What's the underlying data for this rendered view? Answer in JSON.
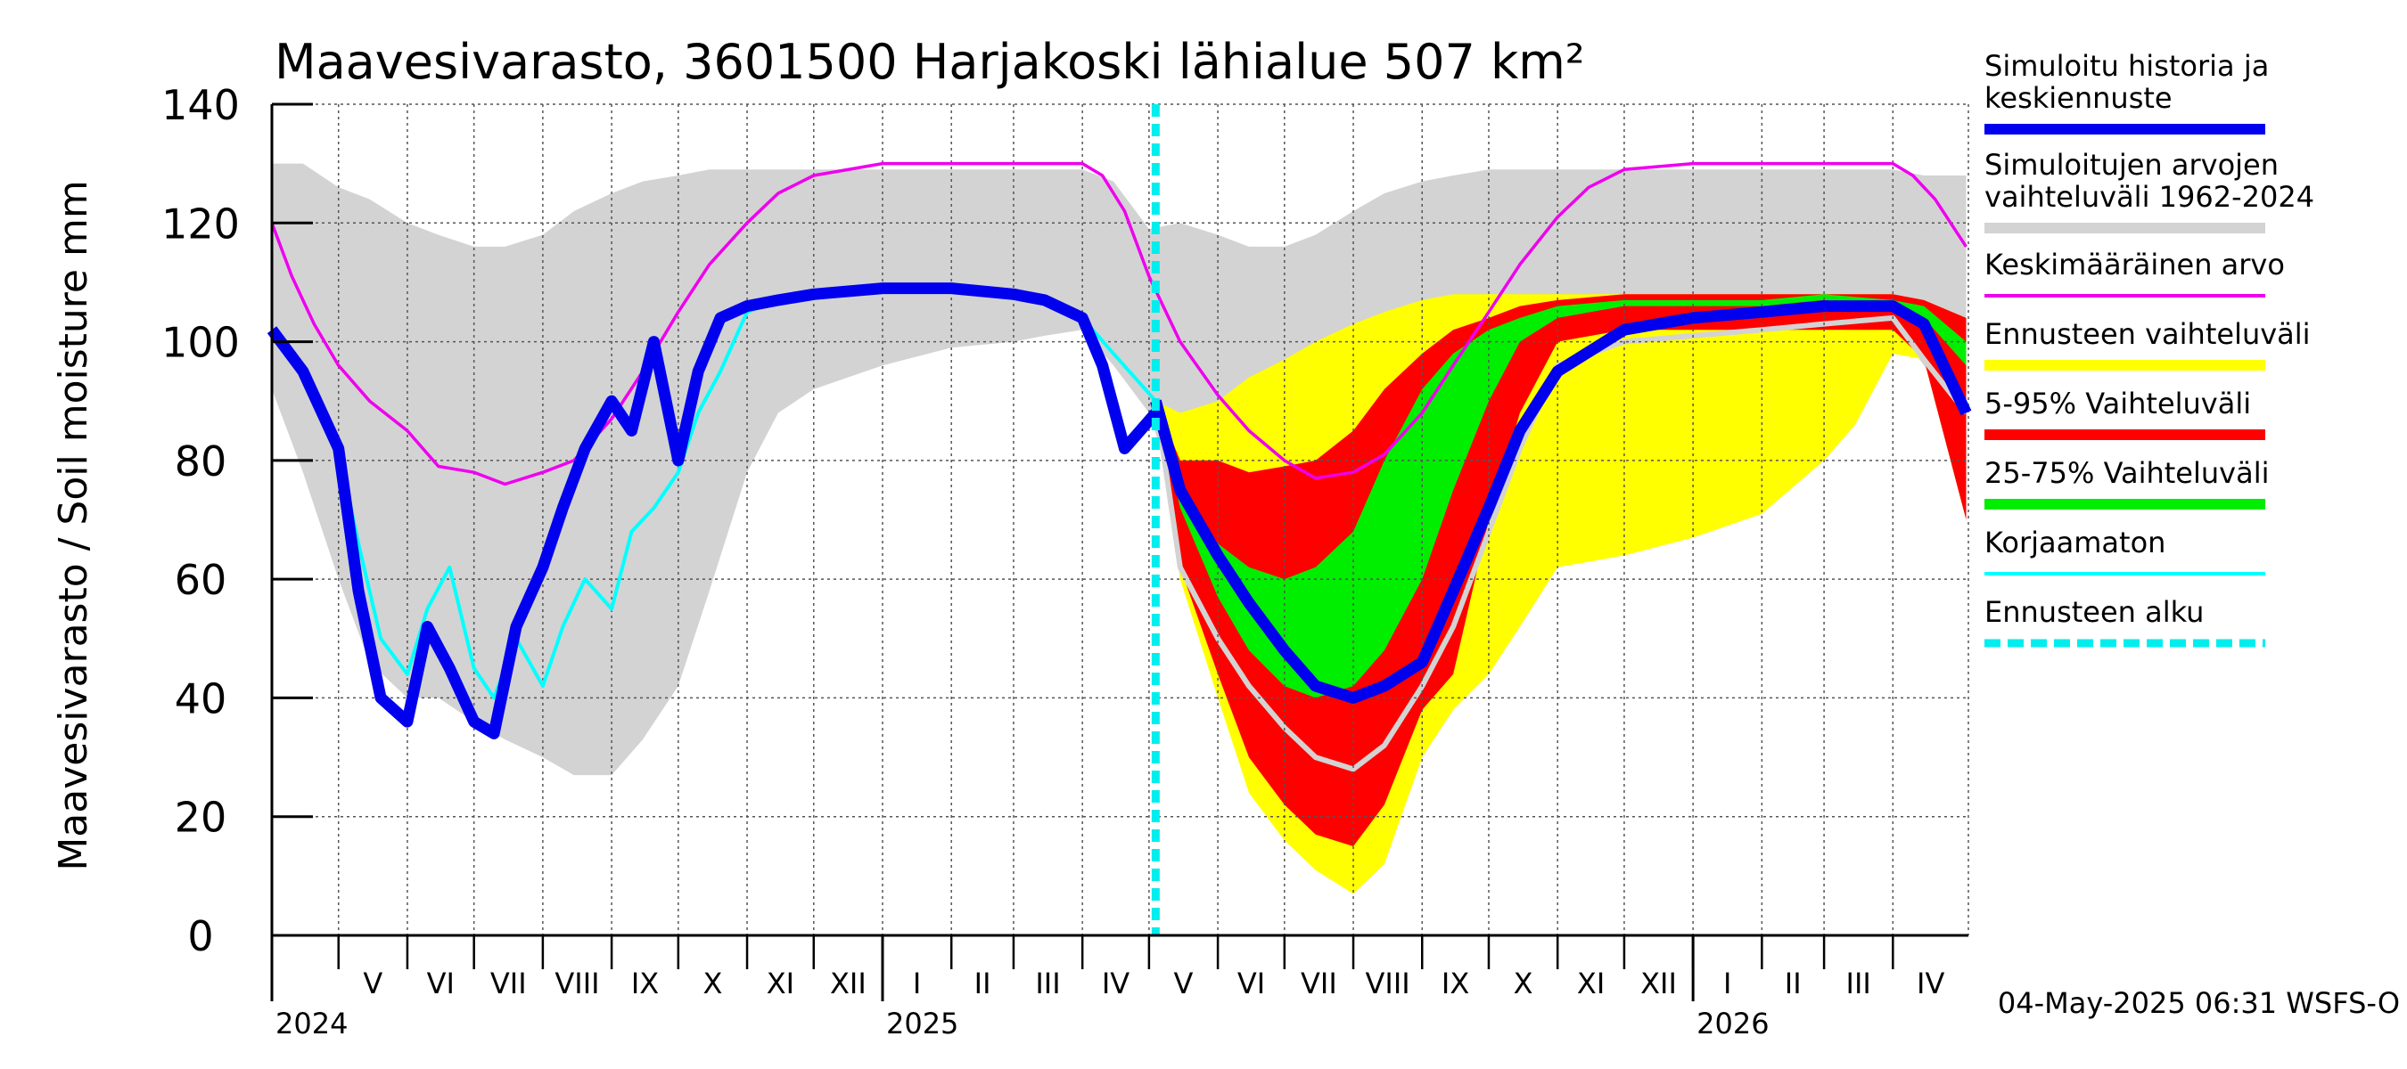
{
  "chart_data": {
    "type": "area",
    "title": "Maavesivarasto, 3601500 Harjakoski lähialue 507 km²",
    "ylabel": "Maavesivarasto / Soil moisture   mm",
    "xlabel": "",
    "ylim": [
      0,
      140
    ],
    "yticks": [
      "0",
      "20",
      "40",
      "60",
      "80",
      "100",
      "120",
      "140"
    ],
    "x_start": "2024-04-01",
    "x_end": "2026-05-05",
    "forecast_start": "2025-05-04",
    "months": [
      {
        "label": "V",
        "start": "2024-05-01"
      },
      {
        "label": "VI",
        "start": "2024-06-01"
      },
      {
        "label": "VII",
        "start": "2024-07-01"
      },
      {
        "label": "VIII",
        "start": "2024-08-01"
      },
      {
        "label": "IX",
        "start": "2024-09-01"
      },
      {
        "label": "X",
        "start": "2024-10-01"
      },
      {
        "label": "XI",
        "start": "2024-11-01"
      },
      {
        "label": "XII",
        "start": "2024-12-01"
      },
      {
        "label": "I",
        "start": "2025-01-01"
      },
      {
        "label": "II",
        "start": "2025-02-01"
      },
      {
        "label": "III",
        "start": "2025-03-01"
      },
      {
        "label": "IV",
        "start": "2025-04-01"
      },
      {
        "label": "V",
        "start": "2025-05-01"
      },
      {
        "label": "VI",
        "start": "2025-06-01"
      },
      {
        "label": "VII",
        "start": "2025-07-01"
      },
      {
        "label": "VIII",
        "start": "2025-08-01"
      },
      {
        "label": "IX",
        "start": "2025-09-01"
      },
      {
        "label": "X",
        "start": "2025-10-01"
      },
      {
        "label": "XI",
        "start": "2025-11-01"
      },
      {
        "label": "XII",
        "start": "2025-12-01"
      },
      {
        "label": "I",
        "start": "2026-01-01"
      },
      {
        "label": "II",
        "start": "2026-02-01"
      },
      {
        "label": "III",
        "start": "2026-03-01"
      },
      {
        "label": "IV",
        "start": "2026-04-01"
      }
    ],
    "years": [
      {
        "label": "2024",
        "date": "2024-04-01"
      },
      {
        "label": "2025",
        "date": "2025-01-01"
      },
      {
        "label": "2026",
        "date": "2026-01-01"
      }
    ],
    "legend": [
      {
        "label": "Simuloitu historia ja keskiennuste",
        "color": "#0000ee",
        "style": "thick"
      },
      {
        "label": "Simuloitujen arvojen vaihteluväli 1962-2024",
        "color": "#d3d3d3",
        "style": "thick"
      },
      {
        "label": "Keskimääräinen arvo",
        "color": "#ee00ee",
        "style": "thin"
      },
      {
        "label": "Ennusteen vaihteluväli",
        "color": "#ffff00",
        "style": "thick"
      },
      {
        "label": "5-95% Vaihteluväli",
        "color": "#ff0000",
        "style": "thick"
      },
      {
        "label": "25-75% Vaihteluväli",
        "color": "#00ee00",
        "style": "thick"
      },
      {
        "label": "Korjaamaton",
        "color": "#00ffff",
        "style": "thin"
      },
      {
        "label": "Ennusteen alku",
        "color": "#00eeee",
        "style": "dashed"
      }
    ],
    "series": {
      "history_range": {
        "x": [
          "2024-04-01",
          "2024-04-15",
          "2024-05-01",
          "2024-05-15",
          "2024-06-01",
          "2024-06-15",
          "2024-07-01",
          "2024-07-15",
          "2024-08-01",
          "2024-08-15",
          "2024-09-01",
          "2024-09-15",
          "2024-10-01",
          "2024-10-15",
          "2024-11-01",
          "2024-11-15",
          "2024-12-01",
          "2025-01-01",
          "2025-02-01",
          "2025-03-01",
          "2025-03-15",
          "2025-04-01",
          "2025-04-15",
          "2025-05-01",
          "2025-05-15",
          "2025-06-01",
          "2025-06-15",
          "2025-07-01",
          "2025-07-15",
          "2025-08-01",
          "2025-08-15",
          "2025-09-01",
          "2025-09-15",
          "2025-10-01",
          "2025-10-15",
          "2025-11-01",
          "2025-12-01",
          "2026-01-01",
          "2026-02-01",
          "2026-03-01",
          "2026-03-15",
          "2026-04-01",
          "2026-04-15",
          "2026-05-04"
        ],
        "low": [
          92,
          78,
          60,
          46,
          40,
          40,
          36,
          33,
          30,
          27,
          27,
          33,
          42,
          58,
          78,
          88,
          92,
          96,
          99,
          100,
          101,
          102,
          96,
          88,
          72,
          60,
          48,
          40,
          35,
          31,
          29,
          32,
          44,
          64,
          82,
          92,
          97,
          100,
          101,
          103,
          103,
          103,
          96,
          86
        ],
        "high": [
          130,
          130,
          126,
          124,
          120,
          118,
          116,
          116,
          118,
          122,
          125,
          127,
          128,
          129,
          129,
          129,
          129,
          129,
          129,
          129,
          129,
          129,
          127,
          119,
          120,
          118,
          116,
          116,
          118,
          122,
          125,
          127,
          128,
          129,
          129,
          129,
          129,
          129,
          129,
          129,
          129,
          129,
          128,
          128
        ]
      },
      "mean": {
        "x": [
          "2024-04-01",
          "2024-04-10",
          "2024-04-20",
          "2024-05-01",
          "2024-05-15",
          "2024-06-01",
          "2024-06-15",
          "2024-07-01",
          "2024-07-15",
          "2024-08-01",
          "2024-08-15",
          "2024-09-01",
          "2024-09-15",
          "2024-10-01",
          "2024-10-15",
          "2024-11-01",
          "2024-11-15",
          "2024-12-01",
          "2025-01-01",
          "2025-02-01",
          "2025-03-01",
          "2025-04-01",
          "2025-04-10",
          "2025-04-20",
          "2025-05-01",
          "2025-05-15",
          "2025-06-01",
          "2025-06-15",
          "2025-07-01",
          "2025-07-15",
          "2025-08-01",
          "2025-08-15",
          "2025-09-01",
          "2025-09-15",
          "2025-10-01",
          "2025-10-15",
          "2025-11-01",
          "2025-11-15",
          "2025-12-01",
          "2026-01-01",
          "2026-02-01",
          "2026-03-01",
          "2026-04-01",
          "2026-04-10",
          "2026-04-20",
          "2026-05-04"
        ],
        "y": [
          120,
          111,
          103,
          96,
          90,
          85,
          79,
          78,
          76,
          78,
          80,
          87,
          95,
          105,
          113,
          120,
          125,
          128,
          130,
          130,
          130,
          130,
          128,
          122,
          111,
          100,
          91,
          85,
          80,
          77,
          78,
          81,
          88,
          96,
          105,
          113,
          121,
          126,
          129,
          130,
          130,
          130,
          130,
          128,
          124,
          116
        ]
      },
      "uncorrected": {
        "x": [
          "2024-04-01",
          "2024-04-15",
          "2024-05-01",
          "2024-05-10",
          "2024-05-20",
          "2024-06-01",
          "2024-06-10",
          "2024-06-20",
          "2024-07-01",
          "2024-07-10",
          "2024-07-20",
          "2024-08-01",
          "2024-08-10",
          "2024-08-20",
          "2024-09-01",
          "2024-09-10",
          "2024-09-20",
          "2024-10-01",
          "2024-10-10",
          "2024-10-20",
          "2024-11-01",
          "2024-11-15",
          "2024-12-01",
          "2025-01-01",
          "2025-02-01",
          "2025-03-01",
          "2025-03-15",
          "2025-04-01",
          "2025-04-15",
          "2025-05-04"
        ],
        "y": [
          102,
          96,
          82,
          66,
          50,
          44,
          55,
          62,
          45,
          40,
          50,
          42,
          52,
          60,
          55,
          68,
          72,
          78,
          88,
          95,
          105,
          107,
          108,
          109,
          109,
          108,
          107,
          104,
          98,
          90
        ]
      },
      "history_median": {
        "x": [
          "2024-04-01",
          "2024-04-15",
          "2024-05-01",
          "2024-05-10",
          "2024-05-20",
          "2024-06-01",
          "2024-06-10",
          "2024-06-20",
          "2024-07-01",
          "2024-07-10",
          "2024-07-20",
          "2024-08-01",
          "2024-08-10",
          "2024-08-20",
          "2024-09-01",
          "2024-09-10",
          "2024-09-20",
          "2024-10-01",
          "2024-10-10",
          "2024-10-20",
          "2024-11-01",
          "2024-11-15",
          "2024-12-01",
          "2025-01-01",
          "2025-02-01",
          "2025-03-01",
          "2025-03-15",
          "2025-04-01",
          "2025-04-10",
          "2025-04-20",
          "2025-05-04"
        ],
        "y": [
          102,
          95,
          82,
          58,
          40,
          36,
          52,
          45,
          36,
          34,
          52,
          62,
          72,
          82,
          90,
          85,
          100,
          80,
          95,
          104,
          106,
          107,
          108,
          109,
          109,
          108,
          107,
          104,
          96,
          82,
          88
        ]
      },
      "forecast_yellow": {
        "x": [
          "2025-05-04",
          "2025-05-15",
          "2025-06-01",
          "2025-06-15",
          "2025-07-01",
          "2025-07-15",
          "2025-08-01",
          "2025-08-15",
          "2025-09-01",
          "2025-09-15",
          "2025-10-01",
          "2025-10-15",
          "2025-11-01",
          "2025-12-01",
          "2026-01-01",
          "2026-02-01",
          "2026-03-01",
          "2026-03-15",
          "2026-04-01",
          "2026-04-15",
          "2026-05-04"
        ],
        "low": [
          90,
          60,
          40,
          24,
          16,
          11,
          7,
          12,
          30,
          38,
          44,
          52,
          62,
          64,
          67,
          71,
          80,
          86,
          98,
          97,
          70
        ],
        "high": [
          90,
          88,
          90,
          94,
          97,
          100,
          103,
          105,
          107,
          108,
          108,
          108,
          108,
          108,
          108,
          108,
          108,
          108,
          108,
          107,
          104
        ]
      },
      "forecast_red": {
        "x": [
          "2025-05-04",
          "2025-05-15",
          "2025-06-01",
          "2025-06-15",
          "2025-07-01",
          "2025-07-15",
          "2025-08-01",
          "2025-08-15",
          "2025-09-01",
          "2025-09-15",
          "2025-10-01",
          "2025-10-15",
          "2025-11-01",
          "2025-12-01",
          "2026-01-01",
          "2026-02-01",
          "2026-03-01",
          "2026-04-01",
          "2026-04-15",
          "2026-05-04"
        ],
        "low": [
          90,
          62,
          44,
          30,
          22,
          17,
          15,
          22,
          38,
          44,
          70,
          88,
          100,
          102,
          102,
          102,
          102,
          102,
          97,
          70
        ],
        "high": [
          90,
          80,
          80,
          78,
          79,
          80,
          85,
          92,
          98,
          102,
          104,
          106,
          107,
          108,
          108,
          108,
          108,
          108,
          107,
          104
        ]
      },
      "forecast_green": {
        "x": [
          "2025-05-04",
          "2025-05-15",
          "2025-06-01",
          "2025-06-15",
          "2025-07-01",
          "2025-07-15",
          "2025-08-01",
          "2025-08-15",
          "2025-09-01",
          "2025-09-15",
          "2025-10-01",
          "2025-10-15",
          "2025-11-01",
          "2025-12-01",
          "2026-01-01",
          "2026-02-01",
          "2026-03-01",
          "2026-04-01",
          "2026-04-15",
          "2026-05-04"
        ],
        "low": [
          90,
          72,
          57,
          48,
          42,
          40,
          42,
          48,
          60,
          75,
          90,
          100,
          104,
          106,
          106,
          106,
          107,
          106,
          104,
          96
        ],
        "high": [
          90,
          76,
          66,
          62,
          60,
          62,
          68,
          80,
          92,
          98,
          102,
          104,
          106,
          107,
          107,
          107,
          108,
          107,
          106,
          100
        ]
      },
      "forecast_median": {
        "x": [
          "2025-05-04",
          "2025-05-15",
          "2025-06-01",
          "2025-06-15",
          "2025-07-01",
          "2025-07-15",
          "2025-08-01",
          "2025-08-15",
          "2025-09-01",
          "2025-09-15",
          "2025-10-01",
          "2025-10-15",
          "2025-11-01",
          "2025-12-01",
          "2026-01-01",
          "2026-02-01",
          "2026-03-01",
          "2026-04-01",
          "2026-04-15",
          "2026-05-04"
        ],
        "y": [
          90,
          75,
          64,
          56,
          48,
          42,
          40,
          42,
          46,
          58,
          72,
          85,
          95,
          102,
          104,
          105,
          106,
          106,
          103,
          88
        ]
      },
      "forecast_mean": {
        "x": [
          "2025-05-04",
          "2025-05-15",
          "2025-06-01",
          "2025-06-15",
          "2025-07-01",
          "2025-07-15",
          "2025-08-01",
          "2025-08-15",
          "2025-09-01",
          "2025-09-15",
          "2025-10-01",
          "2025-10-15",
          "2025-11-01",
          "2025-12-01",
          "2026-01-01",
          "2026-02-01",
          "2026-03-01",
          "2026-04-01",
          "2026-04-15",
          "2026-05-04"
        ],
        "y": [
          90,
          62,
          50,
          42,
          35,
          30,
          28,
          32,
          42,
          52,
          68,
          82,
          96,
          100,
          101,
          102,
          103,
          104,
          97,
          88
        ]
      }
    },
    "grid": true,
    "legend_position": "right"
  },
  "footer": {
    "timestamp": "04-May-2025 06:31 WSFS-O"
  }
}
